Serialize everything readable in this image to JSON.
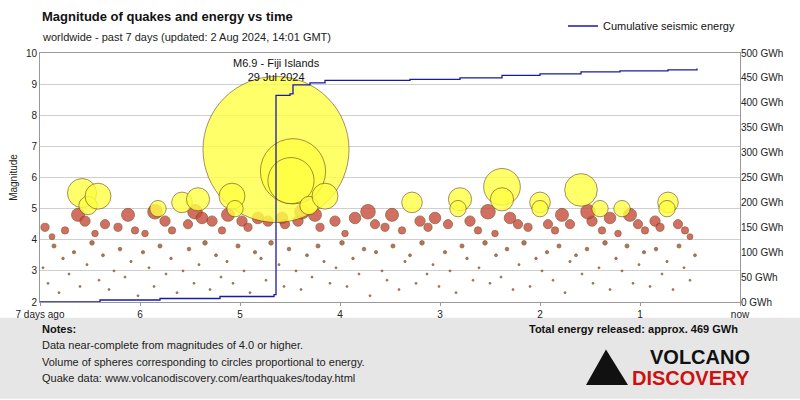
{
  "chart_data": {
    "type": "scatter",
    "title": "Magnitude of quakes and energy vs time",
    "subtitle": "worldwide - past 7 days (updated: 2 Aug 2024, 14:01 GMT)",
    "y_label": "Magnitude",
    "xlim": [
      7,
      0
    ],
    "xticks": [
      {
        "value": 7,
        "label": "7 days ago"
      },
      6,
      5,
      4,
      3,
      2,
      1,
      {
        "value": 0,
        "label": "now"
      }
    ],
    "ylim": [
      2,
      10
    ],
    "yticks": [
      2,
      3,
      4,
      5,
      6,
      7,
      8,
      9,
      10
    ],
    "y2lim": [
      0,
      500
    ],
    "y2ticks": [
      {
        "value": 0,
        "label": "0 GWh"
      },
      {
        "value": 50,
        "label": "50 GWh"
      },
      {
        "value": 100,
        "label": "100 GWh"
      },
      {
        "value": 150,
        "label": "150 GWh"
      },
      {
        "value": 200,
        "label": "200 GWh"
      },
      {
        "value": 250,
        "label": "250 GWh"
      },
      {
        "value": 300,
        "label": "300 GWh"
      },
      {
        "value": 350,
        "label": "350 GWh"
      },
      {
        "value": 400,
        "label": "400 GWh"
      },
      {
        "value": 450,
        "label": "450 GWh"
      },
      {
        "value": 500,
        "label": "500 GWh"
      }
    ],
    "grid": true,
    "legend": "top right",
    "series": [
      {
        "type": "scatter",
        "marker": "bubble",
        "color": "#a0522d",
        "x": [
          6.97,
          6.92,
          6.86,
          6.81,
          6.77,
          6.71,
          6.66,
          6.6,
          6.53,
          6.48,
          6.41,
          6.37,
          6.31,
          6.26,
          6.2,
          6.15,
          6.09,
          6.02,
          5.97,
          5.91,
          5.86,
          5.8,
          5.74,
          5.69,
          5.63,
          5.57,
          5.51,
          5.46,
          5.41,
          5.35,
          5.3,
          5.24,
          5.19,
          5.13,
          5.07,
          5.02,
          4.96,
          4.9,
          4.85,
          4.79,
          4.74,
          4.69,
          4.61,
          4.56,
          4.51,
          4.44,
          4.39,
          4.33,
          4.28,
          4.22,
          4.16,
          4.1,
          4.04,
          3.98,
          3.93,
          3.87,
          3.81,
          3.76,
          3.7,
          3.64,
          3.58,
          3.53,
          3.47,
          3.41,
          3.35,
          3.3,
          3.24,
          3.18,
          3.13,
          3.07,
          3.01,
          2.95,
          2.9,
          2.84,
          2.78,
          2.73,
          2.67,
          2.61,
          2.55,
          2.5,
          2.44,
          2.39,
          2.33,
          2.27,
          2.21,
          2.16,
          2.1,
          2.04,
          1.98,
          1.93,
          1.87,
          1.81,
          1.75,
          1.7,
          1.64,
          1.58,
          1.53,
          1.47,
          1.41,
          1.35,
          1.3,
          1.24,
          1.18,
          1.13,
          1.07,
          1.01,
          0.96,
          0.9,
          0.84,
          0.78,
          0.73,
          0.67,
          0.61,
          0.56,
          0.5,
          0.45
        ],
        "values": [
          3.1,
          2.6,
          3.8,
          2.3,
          3.4,
          2.9,
          3.6,
          2.5,
          3.2,
          3.9,
          2.7,
          3.5,
          2.4,
          3.0,
          3.7,
          2.8,
          3.3,
          2.2,
          3.6,
          3.1,
          2.5,
          3.8,
          2.9,
          3.4,
          2.3,
          3.0,
          3.7,
          2.6,
          3.2,
          3.9,
          2.4,
          3.5,
          2.8,
          3.3,
          2.6,
          3.8,
          3.0,
          2.3,
          3.6,
          3.4,
          2.7,
          3.9,
          3.2,
          2.5,
          3.7,
          3.0,
          2.4,
          3.5,
          2.8,
          3.8,
          3.3,
          2.6,
          3.1,
          3.9,
          2.5,
          3.4,
          2.9,
          3.7,
          2.2,
          3.6,
          3.0,
          2.7,
          3.8,
          2.4,
          3.3,
          3.5,
          2.6,
          3.9,
          2.9,
          3.2,
          2.5,
          3.6,
          3.0,
          2.3,
          3.8,
          3.4,
          2.7,
          3.1,
          3.9,
          2.6,
          3.5,
          2.8,
          3.7,
          2.4,
          3.2,
          3.9,
          2.5,
          3.4,
          3.0,
          3.6,
          2.7,
          3.8,
          2.3,
          3.3,
          3.5,
          2.9,
          3.7,
          2.6,
          3.1,
          3.9,
          2.4,
          3.4,
          3.0,
          3.8,
          2.6,
          3.2,
          3.6,
          2.5,
          3.7,
          2.9,
          3.3,
          2.4,
          3.8,
          3.1,
          2.7,
          3.5
        ]
      },
      {
        "type": "scatter",
        "marker": "bubble",
        "color": "#c94a3b",
        "x": [
          6.95,
          6.88,
          6.75,
          6.62,
          6.55,
          6.45,
          6.35,
          6.22,
          6.12,
          6.05,
          5.95,
          5.85,
          5.75,
          5.68,
          5.52,
          5.45,
          5.38,
          5.28,
          5.18,
          5.12,
          4.98,
          4.92,
          4.82,
          4.72,
          4.58,
          4.55,
          4.42,
          4.38,
          4.25,
          4.2,
          4.05,
          3.95,
          3.85,
          3.72,
          3.65,
          3.55,
          3.48,
          3.38,
          3.2,
          3.12,
          3.05,
          2.92,
          2.7,
          2.62,
          2.52,
          2.45,
          2.3,
          2.22,
          2.12,
          1.92,
          1.85,
          1.78,
          1.7,
          1.48,
          1.52,
          1.38,
          1.3,
          1.22,
          1.1,
          1.02,
          0.95,
          0.85,
          0.8,
          0.62,
          0.55,
          0.5
        ],
        "values": [
          4.4,
          4.1,
          4.3,
          4.8,
          4.6,
          4.2,
          4.5,
          4.4,
          4.8,
          4.3,
          4.2,
          4.9,
          4.6,
          4.3,
          4.5,
          4.9,
          4.7,
          4.6,
          4.3,
          4.8,
          4.6,
          4.4,
          4.7,
          4.6,
          4.7,
          4.5,
          4.6,
          4.9,
          4.8,
          4.4,
          4.6,
          4.2,
          4.7,
          4.9,
          4.5,
          4.4,
          4.8,
          4.3,
          4.6,
          4.4,
          4.7,
          4.5,
          4.6,
          4.3,
          4.9,
          4.2,
          4.7,
          4.5,
          4.4,
          4.5,
          4.3,
          4.8,
          4.5,
          4.6,
          4.9,
          4.3,
          4.7,
          4.2,
          4.8,
          4.5,
          4.3,
          4.6,
          4.4,
          4.5,
          4.3,
          4.1
        ]
      },
      {
        "type": "scatter",
        "marker": "bubble",
        "color": "#ffff44",
        "x": [
          4.64,
          6.58,
          6.52,
          6.42,
          5.82,
          5.58,
          5.42,
          5.08,
          5.05,
          4.47,
          4.49,
          4.31,
          4.15,
          3.28,
          2.8,
          2.82,
          2.38,
          2.38,
          2.0,
          2.0,
          1.59,
          1.4,
          1.18,
          0.72,
          0.73
        ],
        "values": [
          6.9,
          5.5,
          5.1,
          5.4,
          5.0,
          5.2,
          5.3,
          5.4,
          5.0,
          6.2,
          5.9,
          5.1,
          5.4,
          5.2,
          5.3,
          5.0,
          5.7,
          5.3,
          5.2,
          5.0,
          5.6,
          5.0,
          5.0,
          5.2,
          5.0
        ]
      },
      {
        "type": "line",
        "name": "Cumulative seismic energy",
        "axis": "y2",
        "color": "#1a1aa8",
        "line_style": "step",
        "x": [
          7,
          6.4,
          5.8,
          5.2,
          4.66,
          4.64,
          4.5,
          4.47,
          4.3,
          4.15,
          3.3,
          2.8,
          2.38,
          2.0,
          1.59,
          1.2,
          0.72,
          0.43
        ],
        "values": [
          0,
          4,
          7,
          11,
          15,
          415,
          418,
          436,
          440,
          445,
          447,
          450,
          455,
          458,
          462,
          464,
          466,
          469
        ]
      }
    ],
    "annotations": [
      {
        "text": [
          "M6.9 - Fiji Islands",
          "29 Jul 2024"
        ],
        "x": 4.64,
        "y": 6.9
      }
    ],
    "notes": {
      "heading": "Notes:",
      "lines": [
        "Data near-complete from magnitudes of 4.0 or higher.",
        "Volume of spheres corresponding to circles proportional to energy.",
        "Quake data: www.volcanodiscovery.com/earthquakes/today.html"
      ]
    },
    "total_energy": "Total energy released: approx. 469 GWh",
    "logo": [
      "VOLCANO",
      "DISCOVERY"
    ]
  }
}
